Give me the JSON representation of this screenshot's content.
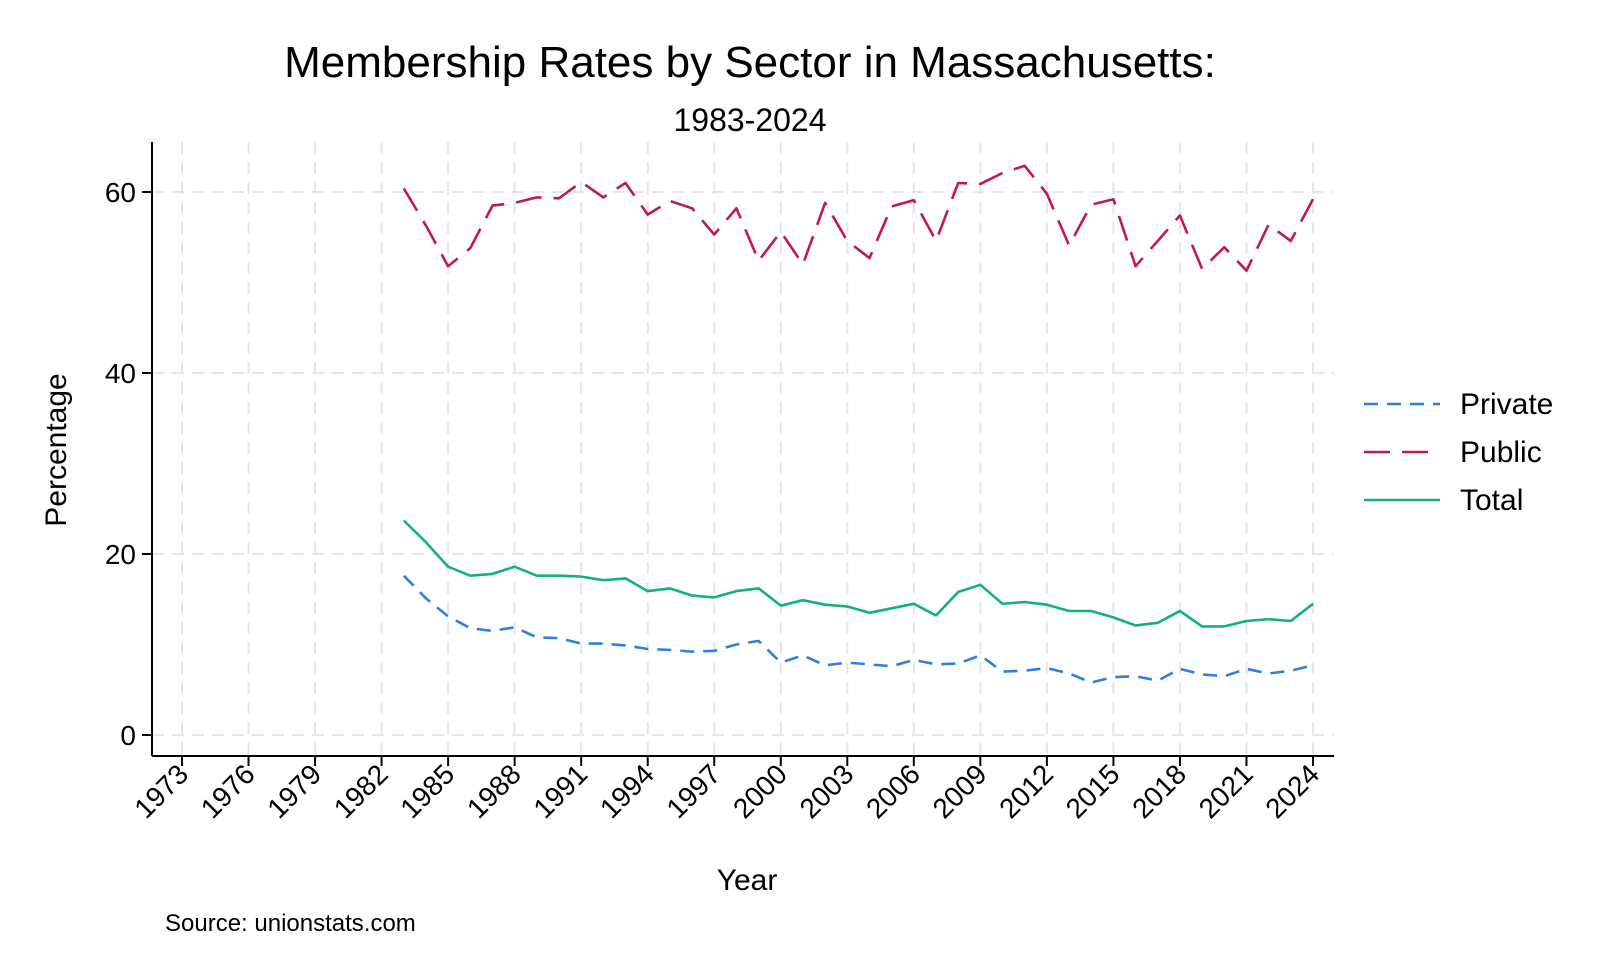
{
  "colors": {
    "private": "#2f7fe0",
    "public": "#c2185b",
    "total": "#14b07e",
    "grid": "#e6e6e6",
    "axis": "#000000"
  },
  "source": "Source: unionstats.com",
  "chart_data": {
    "type": "line",
    "title": "Membership Rates by Sector in Massachusetts:",
    "subtitle": "1983-2024",
    "xlabel": "Year",
    "ylabel": "Percentage",
    "xlim": [
      1973,
      2024
    ],
    "ylim": [
      0,
      65
    ],
    "x_ticks": [
      1973,
      1976,
      1979,
      1982,
      1985,
      1988,
      1991,
      1994,
      1997,
      2000,
      2003,
      2006,
      2009,
      2012,
      2015,
      2018,
      2021,
      2024
    ],
    "y_ticks": [
      0,
      20,
      40,
      60
    ],
    "grid": true,
    "legend_position": "right",
    "x": [
      1983,
      1984,
      1985,
      1986,
      1987,
      1988,
      1989,
      1990,
      1991,
      1992,
      1993,
      1994,
      1995,
      1996,
      1997,
      1998,
      1999,
      2000,
      2001,
      2002,
      2003,
      2004,
      2005,
      2006,
      2007,
      2008,
      2009,
      2010,
      2011,
      2012,
      2013,
      2014,
      2015,
      2016,
      2017,
      2018,
      2019,
      2020,
      2021,
      2022,
      2023,
      2024
    ],
    "series": [
      {
        "name": "Private",
        "style": "short-dash",
        "values": [
          17.6,
          15.1,
          13.1,
          11.8,
          11.5,
          11.9,
          10.8,
          10.7,
          10.1,
          10.1,
          9.9,
          9.5,
          9.4,
          9.2,
          9.3,
          10.0,
          10.4,
          8.0,
          8.8,
          7.7,
          8.0,
          7.8,
          7.6,
          8.3,
          7.8,
          7.9,
          8.8,
          7.0,
          7.1,
          7.4,
          6.8,
          5.8,
          6.4,
          6.5,
          6.0,
          7.3,
          6.7,
          6.5,
          7.3,
          6.8,
          7.1,
          7.7
        ]
      },
      {
        "name": "Public",
        "style": "long-dash",
        "values": [
          60.4,
          56.3,
          51.8,
          53.8,
          58.5,
          58.8,
          59.4,
          59.3,
          61.1,
          59.4,
          61.0,
          57.5,
          59.0,
          58.2,
          55.3,
          58.2,
          52.4,
          55.6,
          52.0,
          58.8,
          54.6,
          52.7,
          58.4,
          59.1,
          54.6,
          61.0,
          60.9,
          62.1,
          62.9,
          59.8,
          54.1,
          58.6,
          59.2,
          51.8,
          54.6,
          57.4,
          51.5,
          53.9,
          51.3,
          56.4,
          54.6,
          59.2
        ]
      },
      {
        "name": "Total",
        "style": "solid",
        "values": [
          23.7,
          21.3,
          18.6,
          17.6,
          17.8,
          18.6,
          17.6,
          17.6,
          17.5,
          17.1,
          17.3,
          15.9,
          16.2,
          15.4,
          15.2,
          15.9,
          16.2,
          14.3,
          14.9,
          14.4,
          14.2,
          13.5,
          14.0,
          14.5,
          13.2,
          15.8,
          16.6,
          14.5,
          14.7,
          14.4,
          13.7,
          13.7,
          13.0,
          12.1,
          12.4,
          13.7,
          12.0,
          12.0,
          12.6,
          12.8,
          12.6,
          14.5
        ]
      }
    ]
  }
}
